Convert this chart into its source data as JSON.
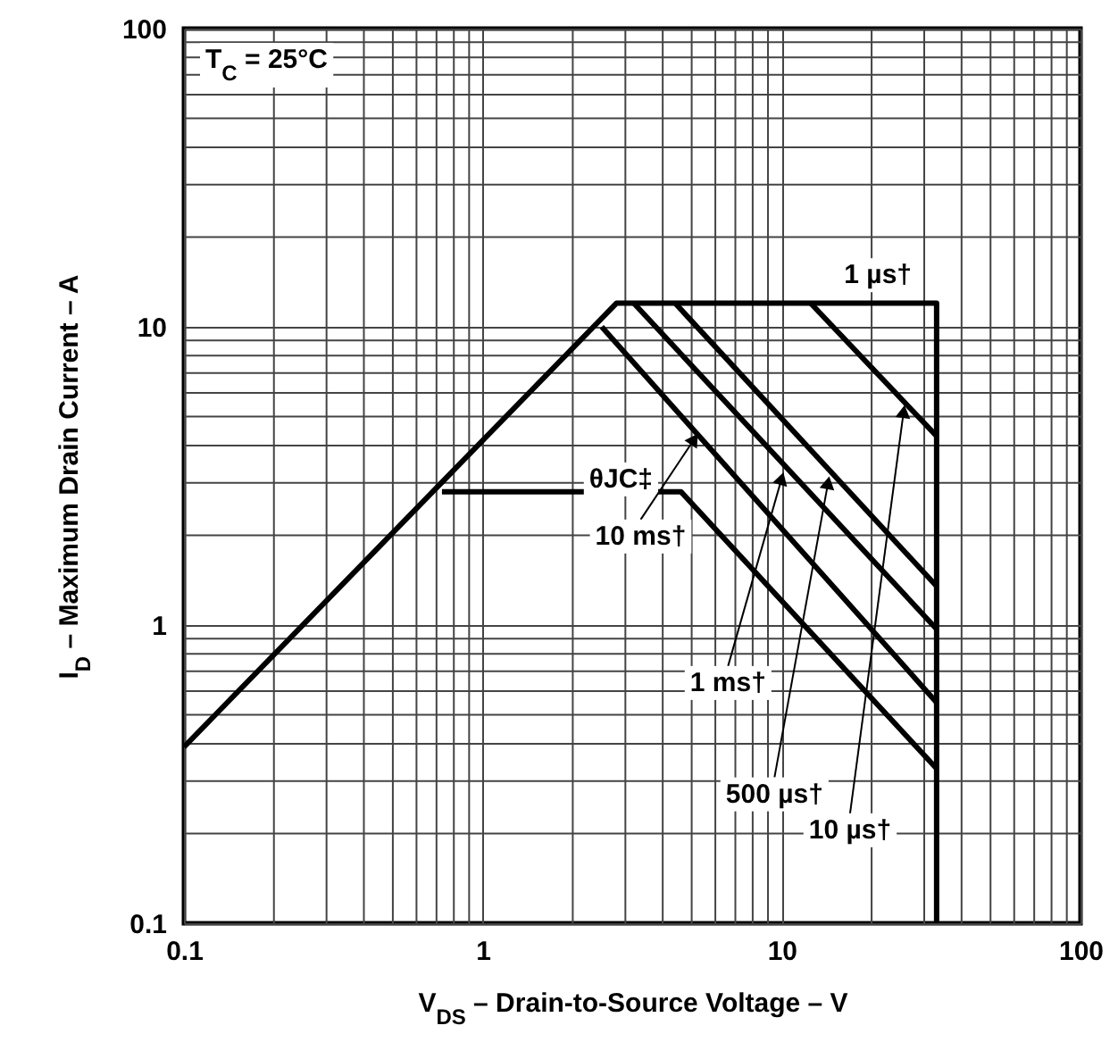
{
  "chart_data": {
    "type": "line",
    "xlabel": "V$_{DS}$ – Drain-to-Source Voltage – V",
    "ylabel": "I$_{D}$ – Maximum Drain Current – A",
    "xlim": [
      0.1,
      100
    ],
    "ylim": [
      0.1,
      100
    ],
    "xticks": [
      0.1,
      1,
      10,
      100
    ],
    "yticks": [
      0.1,
      1,
      10,
      100
    ],
    "log": "xy",
    "grid": true,
    "marker": "none",
    "line_style": "solid",
    "series": [
      {
        "color": "#000000",
        "x": [
          0.1,
          2.8,
          33,
          33
        ],
        "values": [
          0.39,
          12,
          12,
          0.1
        ]
      },
      {
        "color": "#000000",
        "x": [
          12.5,
          33
        ],
        "values": [
          12,
          4.3
        ]
      },
      {
        "color": "#000000",
        "x": [
          4.4,
          33
        ],
        "values": [
          12,
          1.35
        ]
      },
      {
        "color": "#000000",
        "x": [
          3.2,
          33
        ],
        "values": [
          12,
          0.97
        ]
      },
      {
        "color": "#000000",
        "x": [
          2.5,
          33
        ],
        "values": [
          10,
          0.55
        ]
      },
      {
        "color": "#000000",
        "x": [
          0.73,
          4.6,
          33
        ],
        "values": [
          2.8,
          2.8,
          0.33
        ]
      }
    ],
    "annotations": [
      "T$_{C}$ = 25°C",
      {
        "text": "1 µs†",
        "x": 21,
        "y": 15
      },
      {
        "text": "θJC‡",
        "x": 2.9,
        "y": 3.1
      },
      {
        "text": "10 ms†",
        "x": 5.1,
        "y": 4.2
      },
      {
        "text": "1 ms†",
        "x": 10,
        "y": 3.1
      },
      {
        "text": "500 µs†",
        "x": 14.3,
        "y": 3.0
      },
      {
        "text": "10 µs†",
        "x": 25.6,
        "y": 5.2
      }
    ]
  }
}
